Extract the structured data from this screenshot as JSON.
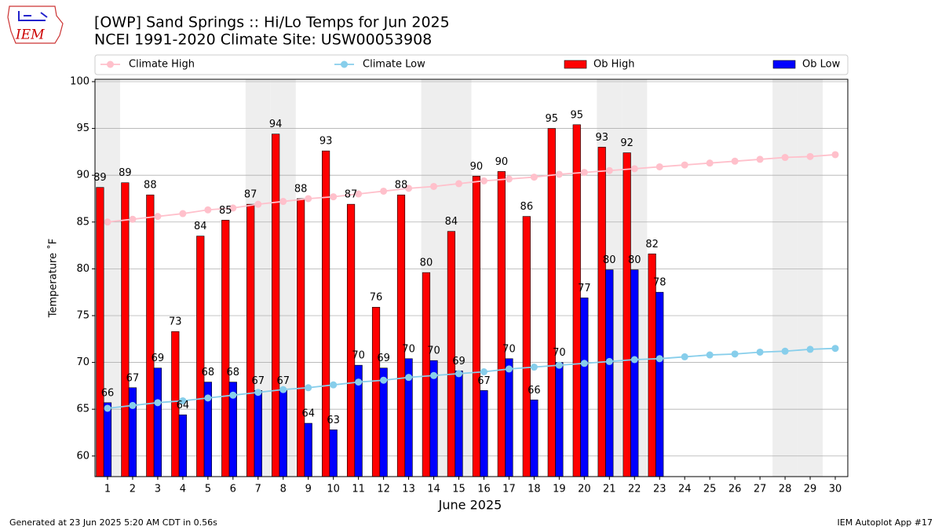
{
  "logo_text": "IEM",
  "footer": {
    "left": "Generated at 23 Jun 2025 5:20 AM CDT in 0.56s",
    "right": "IEM Autoplot App #17"
  },
  "chart_data": {
    "type": "bar",
    "title": "[OWP] Sand Springs :: Hi/Lo Temps for Jun 2025",
    "subtitle": "NCEI 1991-2020 Climate Site: USW00053908",
    "x_label": "June 2025",
    "y_label": "Temperature ˚F",
    "categories": [
      "1",
      "2",
      "3",
      "4",
      "5",
      "6",
      "7",
      "8",
      "9",
      "10",
      "11",
      "12",
      "13",
      "14",
      "15",
      "16",
      "17",
      "18",
      "19",
      "20",
      "21",
      "22",
      "23",
      "24",
      "25",
      "26",
      "27",
      "28",
      "29",
      "30"
    ],
    "highlight_categories": [
      "1",
      "7",
      "8",
      "14",
      "15",
      "21",
      "22",
      "28",
      "29"
    ],
    "highlight_color": "#eeeeee",
    "ylim": [
      57.8,
      100.25
    ],
    "yticks": [
      60,
      65,
      70,
      75,
      80,
      85,
      90,
      95,
      100
    ],
    "grid": true,
    "series": [
      {
        "name": "Climate High",
        "type": "line",
        "color": "#ffc0cb",
        "values": [
          85.0,
          85.3,
          85.6,
          85.9,
          86.3,
          86.5,
          86.9,
          87.2,
          87.5,
          87.7,
          88.0,
          88.3,
          88.6,
          88.8,
          89.1,
          89.4,
          89.6,
          89.8,
          90.1,
          90.3,
          90.5,
          90.7,
          90.9,
          91.1,
          91.3,
          91.5,
          91.7,
          91.9,
          92.0,
          92.2
        ]
      },
      {
        "name": "Climate Low",
        "type": "line",
        "color": "#87ceeb",
        "values": [
          65.1,
          65.4,
          65.7,
          65.9,
          66.2,
          66.5,
          66.8,
          67.1,
          67.3,
          67.6,
          67.9,
          68.1,
          68.4,
          68.6,
          68.8,
          69.0,
          69.3,
          69.5,
          69.7,
          69.9,
          70.1,
          70.3,
          70.4,
          70.6,
          70.8,
          70.9,
          71.1,
          71.2,
          71.4,
          71.5
        ]
      },
      {
        "name": "Ob High",
        "type": "bar",
        "color": "#ff0000",
        "values": [
          88.7,
          89.2,
          87.9,
          73.3,
          83.5,
          85.2,
          86.9,
          94.4,
          87.5,
          92.6,
          86.9,
          75.9,
          87.9,
          79.6,
          84.0,
          89.9,
          90.4,
          85.6,
          95.0,
          95.4,
          93.0,
          92.4,
          81.6,
          null,
          null,
          null,
          null,
          null,
          null,
          null
        ],
        "value_labels": [
          "89",
          "89",
          "88",
          "73",
          "84",
          "85",
          "87",
          "94",
          "88",
          "93",
          "87",
          "76",
          "88",
          "80",
          "84",
          "90",
          "90",
          "86",
          "95",
          "95",
          "93",
          "92",
          "82",
          null,
          null,
          null,
          null,
          null,
          null,
          null
        ]
      },
      {
        "name": "Ob Low",
        "type": "bar",
        "color": "#0000ff",
        "values": [
          65.7,
          67.3,
          69.4,
          64.4,
          67.9,
          67.9,
          67.0,
          67.0,
          63.5,
          62.8,
          69.7,
          69.4,
          70.4,
          70.2,
          69.1,
          67.0,
          70.4,
          66.0,
          70.0,
          76.9,
          79.9,
          79.9,
          77.5,
          null,
          null,
          null,
          null,
          null,
          null,
          null
        ],
        "value_labels": [
          "66",
          "67",
          "69",
          "64",
          "68",
          "68",
          "67",
          "67",
          "64",
          "63",
          "70",
          "69",
          "70",
          "70",
          "69",
          "67",
          "70",
          "66",
          "70",
          "77",
          "80",
          "80",
          "78",
          null,
          null,
          null,
          null,
          null,
          null,
          null
        ]
      }
    ]
  }
}
